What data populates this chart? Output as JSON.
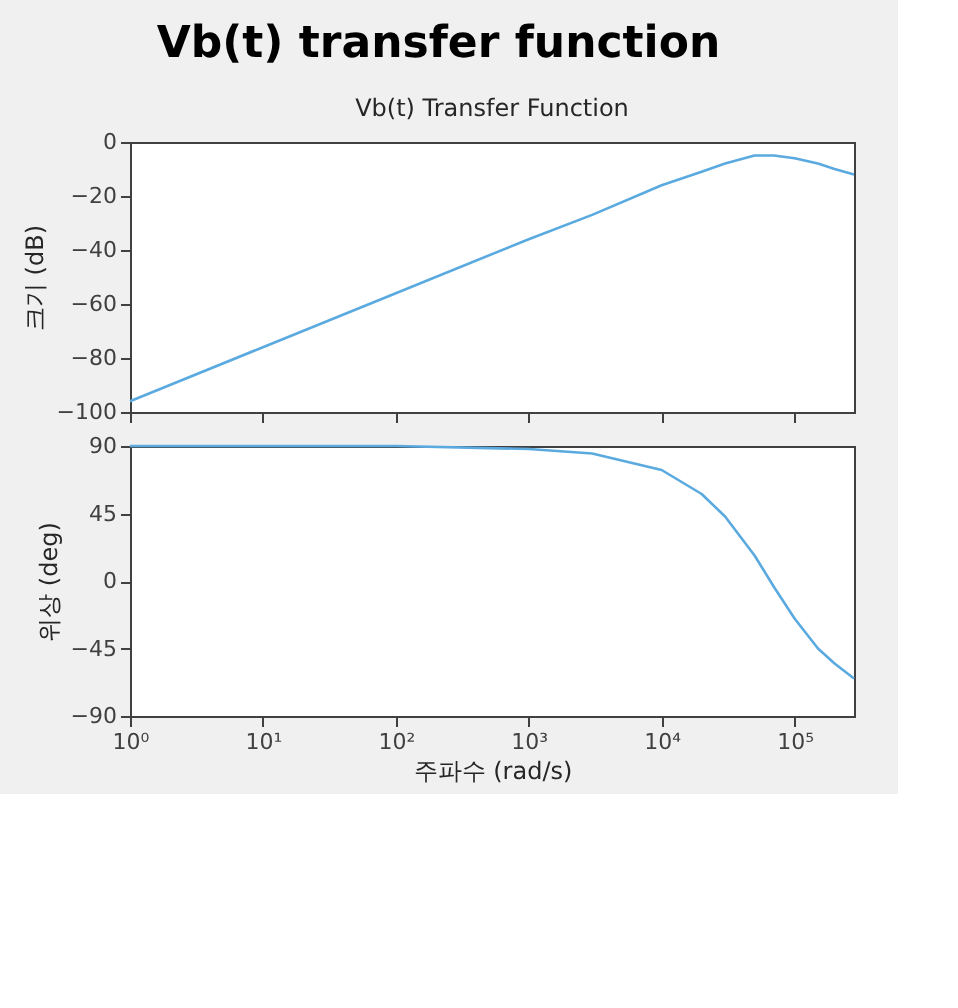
{
  "chart_data": [
    {
      "type": "line",
      "title": "Vb(t) Transfer Function",
      "annotations": [
        "Vb(t)  transfer function"
      ],
      "ylabel": "크기 (dB)",
      "x": [
        1,
        10,
        100,
        1000,
        3000,
        10000,
        20000,
        30000,
        50000,
        70000,
        100000,
        150000,
        200000,
        280000
      ],
      "series": [
        {
          "color": "#5aaae0",
          "values": [
            -96,
            -76,
            -56,
            -36,
            -27,
            -16,
            -11,
            -8,
            -5,
            -5,
            -6,
            -8,
            -10,
            -12
          ]
        }
      ],
      "log": "x",
      "xlim": [
        1,
        280000
      ],
      "ylim": [
        -100,
        0
      ],
      "yticks": [
        -100,
        -80,
        -60,
        -40,
        -20,
        0
      ],
      "xticks": [
        {
          "value": 1,
          "label": null
        },
        {
          "value": 10,
          "label": null
        },
        {
          "value": 100,
          "label": null
        },
        {
          "value": 1000,
          "label": null
        },
        {
          "value": 10000,
          "label": null
        },
        {
          "value": 100000,
          "label": null
        }
      ],
      "tick_labels": "y",
      "grid": false
    },
    {
      "type": "line",
      "ylabel": "위상 (deg)",
      "xlabel": "주파수  (rad/s)",
      "x": [
        1,
        10,
        100,
        1000,
        3000,
        10000,
        20000,
        30000,
        50000,
        70000,
        100000,
        150000,
        200000,
        280000
      ],
      "series": [
        {
          "color": "#5aaae0",
          "values": [
            90,
            90,
            90,
            88,
            85,
            74,
            58,
            43,
            17,
            -4,
            -25,
            -45,
            -55,
            -65
          ]
        }
      ],
      "log": "x",
      "xlim": [
        1,
        280000
      ],
      "ylim": [
        -90,
        90
      ],
      "yticks": [
        -90,
        -45,
        0,
        45,
        90
      ],
      "xticks": [
        {
          "value": 1,
          "label": "10⁰"
        },
        {
          "value": 10,
          "label": "10¹"
        },
        {
          "value": 100,
          "label": "10²"
        },
        {
          "value": 1000,
          "label": "10³"
        },
        {
          "value": 10000,
          "label": "10⁴"
        },
        {
          "value": 100000,
          "label": "10⁵"
        }
      ],
      "grid": false
    }
  ]
}
